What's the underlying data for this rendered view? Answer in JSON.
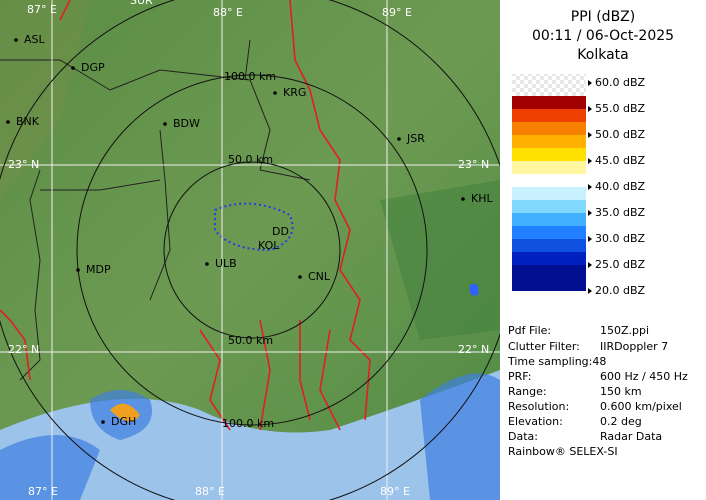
{
  "map": {
    "top_labels": [
      "87° E",
      "SUR",
      "88° E",
      "89° E"
    ],
    "places": [
      "ASL",
      "DGP",
      "KRG",
      "BDW",
      "BNK",
      "JSR",
      "KHL",
      "DD",
      "KOL",
      "ULB",
      "CNL",
      "MDP",
      "DGH"
    ],
    "lat_labels": [
      "23° N",
      "23° N",
      "22° N",
      "22° N"
    ],
    "ring_labels": [
      "100.0 km",
      "50.0 km",
      "50.0 km",
      "100.0 km"
    ],
    "bottom_labels": [
      "87° E",
      "88° E",
      "89° E"
    ]
  },
  "panel": {
    "title": "PPI (dBZ)",
    "time": "00:11 / 06-Oct-2025",
    "site": "Kolkata",
    "legend": [
      "60.0 dBZ",
      "55.0 dBZ",
      "50.0 dBZ",
      "45.0 dBZ",
      "40.0 dBZ",
      "35.0 dBZ",
      "30.0 dBZ",
      "25.0 dBZ",
      "20.0 dBZ"
    ],
    "legend_colors": [
      [
        "#a00000",
        "#c80000"
      ],
      [
        "#e81000",
        "#f04000"
      ],
      [
        "#f88000",
        "#ffb000"
      ],
      [
        "#ffe000",
        "#fff8a0"
      ],
      [
        "#ffffff",
        "#c8f0ff"
      ],
      [
        "#80d8ff",
        "#40b0ff"
      ],
      [
        "#2080ff",
        "#1050e0"
      ],
      [
        "#0020c0",
        "#001090"
      ]
    ],
    "info": [
      [
        "Pdf File:",
        "150Z.ppi"
      ],
      [
        "Clutter Filter:",
        "IIRDoppler 7"
      ],
      [
        "PRF:",
        "600 Hz / 450 Hz"
      ],
      [
        "Range:",
        "150 km"
      ],
      [
        "Resolution:",
        "0.600 km/pixel"
      ],
      [
        "Elevation:",
        "0.2 deg"
      ],
      [
        "Data:",
        "Radar Data"
      ]
    ],
    "sampling": "Time sampling:48",
    "footer": "Rainbow® SELEX-SI"
  }
}
